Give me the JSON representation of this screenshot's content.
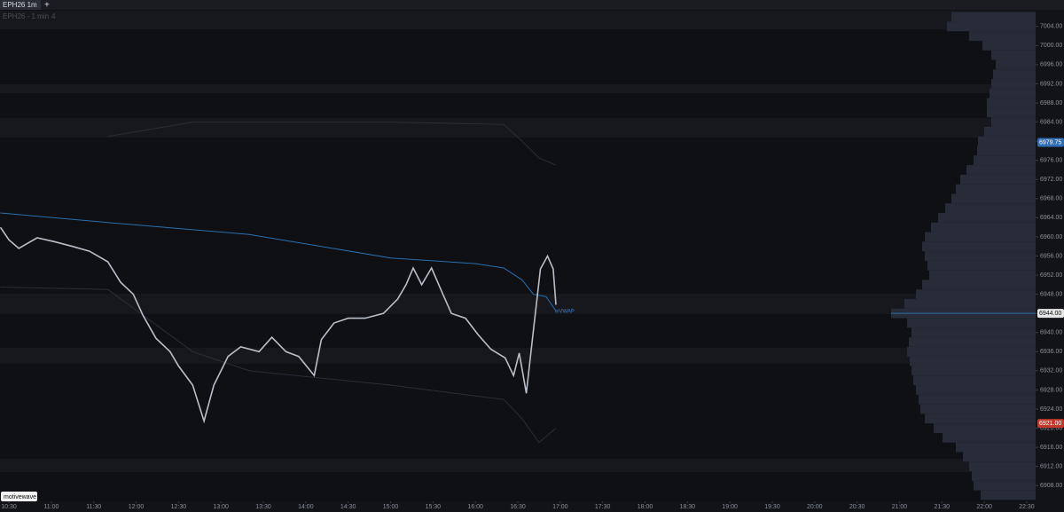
{
  "chart_data": {
    "type": "line",
    "tab": "EPH26 1m",
    "tab_add": "+",
    "subtitle": "EPH26 - 1 min",
    "subtitle_count": "4",
    "logo": "motivewave",
    "vwap_label": "wVWAP",
    "xlim": [
      623.7,
      1356.3
    ],
    "ylim": [
      6904.7,
      7007.3
    ],
    "xticks": [
      {
        "value": 630,
        "label": "10:30"
      },
      {
        "value": 660,
        "label": "11:00"
      },
      {
        "value": 690,
        "label": "11:30"
      },
      {
        "value": 720,
        "label": "12:00"
      },
      {
        "value": 750,
        "label": "12:30"
      },
      {
        "value": 780,
        "label": "13:00"
      },
      {
        "value": 810,
        "label": "13:30"
      },
      {
        "value": 840,
        "label": "14:00"
      },
      {
        "value": 870,
        "label": "14:30"
      },
      {
        "value": 900,
        "label": "15:00"
      },
      {
        "value": 930,
        "label": "15:30"
      },
      {
        "value": 960,
        "label": "16:00"
      },
      {
        "value": 990,
        "label": "16:30"
      },
      {
        "value": 1020,
        "label": "17:00"
      },
      {
        "value": 1050,
        "label": "17:30"
      },
      {
        "value": 1080,
        "label": "18:00"
      },
      {
        "value": 1110,
        "label": "18:30"
      },
      {
        "value": 1140,
        "label": "19:00"
      },
      {
        "value": 1170,
        "label": "19:30"
      },
      {
        "value": 1200,
        "label": "20:00"
      },
      {
        "value": 1230,
        "label": "20:30"
      },
      {
        "value": 1260,
        "label": "21:00"
      },
      {
        "value": 1290,
        "label": "21:30"
      },
      {
        "value": 1320,
        "label": "22:00"
      },
      {
        "value": 1350,
        "label": "22:30"
      }
    ],
    "yticks": [
      {
        "value": 6908,
        "label": "6908.00"
      },
      {
        "value": 6912,
        "label": "6912.00"
      },
      {
        "value": 6916,
        "label": "6916.00"
      },
      {
        "value": 6920,
        "label": "6920.00"
      },
      {
        "value": 6924,
        "label": "6924.00"
      },
      {
        "value": 6928,
        "label": "6928.00"
      },
      {
        "value": 6932,
        "label": "6932.00"
      },
      {
        "value": 6936,
        "label": "6936.00"
      },
      {
        "value": 6940,
        "label": "6940.00"
      },
      {
        "value": 6944,
        "label": "6944.00"
      },
      {
        "value": 6948,
        "label": "6948.00"
      },
      {
        "value": 6952,
        "label": "6952.00"
      },
      {
        "value": 6956,
        "label": "6956.00"
      },
      {
        "value": 6960,
        "label": "6960.00"
      },
      {
        "value": 6964,
        "label": "6964.00"
      },
      {
        "value": 6968,
        "label": "6968.00"
      },
      {
        "value": 6972,
        "label": "6972.00"
      },
      {
        "value": 6976,
        "label": "6976.00"
      },
      {
        "value": 6980,
        "label": "6980.00"
      },
      {
        "value": 6984,
        "label": "6984.00"
      },
      {
        "value": 6988,
        "label": "6988.00"
      },
      {
        "value": 6992,
        "label": "6992.00"
      },
      {
        "value": 6996,
        "label": "6996.00"
      },
      {
        "value": 7000,
        "label": "7000.00"
      },
      {
        "value": 7004,
        "label": "7004.00"
      }
    ],
    "series": [
      {
        "color": "#b9bec8",
        "x": [
          624,
          630,
          637,
          650,
          662,
          675,
          687,
          700,
          709,
          718,
          725,
          734,
          744,
          750,
          760,
          768,
          775,
          785,
          794,
          807,
          816,
          826,
          835,
          846,
          851,
          860,
          870,
          882,
          895,
          905,
          911,
          916,
          922,
          929,
          937,
          943,
          953,
          962,
          971,
          981,
          987,
          991,
          996,
          1001,
          1006,
          1011,
          1015,
          1017
        ],
        "values": [
          6962,
          6959.4,
          6957.6,
          6959.8,
          6959,
          6958,
          6957,
          6954.8,
          6950.5,
          6948,
          6943.5,
          6938.8,
          6936,
          6933,
          6929,
          6921.5,
          6929,
          6935,
          6937,
          6936,
          6939,
          6936,
          6935,
          6931,
          6938.5,
          6942,
          6943,
          6943,
          6944,
          6947,
          6950,
          6953.5,
          6950,
          6953.5,
          6948,
          6944,
          6943,
          6939.5,
          6936.5,
          6934.7,
          6931,
          6935.7,
          6927.3,
          6940.3,
          6953.3,
          6956,
          6953.3,
          6945.8
        ]
      },
      {
        "color": "#2a6fae",
        "x": [
          624,
          700,
          800,
          900,
          960,
          980,
          993,
          1001,
          1010,
          1017
        ],
        "values": [
          6965,
          6963,
          6960.5,
          6955.6,
          6954.4,
          6953.5,
          6951,
          6948,
          6947.5,
          6944.5
        ]
      },
      {
        "color": "#2a2e37",
        "x": [
          700,
          740,
          760,
          800,
          900,
          980,
          993,
          1005,
          1017
        ],
        "values": [
          6981,
          6983,
          6984,
          6984,
          6984,
          6983.5,
          6980,
          6976.5,
          6975
        ]
      },
      {
        "color": "#2a2e37",
        "x": [
          624,
          700,
          760,
          800,
          900,
          980,
          993,
          1005,
          1017
        ],
        "values": [
          6949.5,
          6949,
          6936,
          6932,
          6929,
          6926,
          6922,
          6917,
          6920
        ]
      }
    ],
    "profile": {
      "color": "#272c38",
      "levels": [
        6906,
        6908,
        6910,
        6912,
        6914,
        6916,
        6918,
        6920,
        6922,
        6924,
        6926,
        6928,
        6930,
        6932,
        6934,
        6936,
        6938,
        6940,
        6942,
        6944,
        6946,
        6948,
        6950,
        6952,
        6954,
        6956,
        6958,
        6960,
        6962,
        6964,
        6966,
        6968,
        6970,
        6972,
        6974,
        6976,
        6978,
        6980,
        6982,
        6984,
        6986,
        6988,
        6990,
        6992,
        6994,
        6996,
        6998,
        7000,
        7002,
        7004,
        7006
      ],
      "values": [
        62,
        70,
        72,
        75,
        82,
        90,
        105,
        115,
        125,
        130,
        132,
        135,
        138,
        140,
        142,
        145,
        143,
        140,
        145,
        163,
        148,
        135,
        128,
        120,
        122,
        125,
        128,
        125,
        118,
        110,
        102,
        95,
        90,
        85,
        78,
        70,
        66,
        65,
        58,
        50,
        55,
        55,
        52,
        50,
        48,
        45,
        50,
        60,
        75,
        100,
        95
      ]
    },
    "price_labels": [
      {
        "value": 6979.75,
        "label": "6979.75",
        "color": "#2f6eb3"
      },
      {
        "value": 6944,
        "label": "6944.00",
        "color": "#e6e6e6"
      },
      {
        "value": 6921,
        "label": "6921.00",
        "color": "#c0392b"
      }
    ]
  }
}
